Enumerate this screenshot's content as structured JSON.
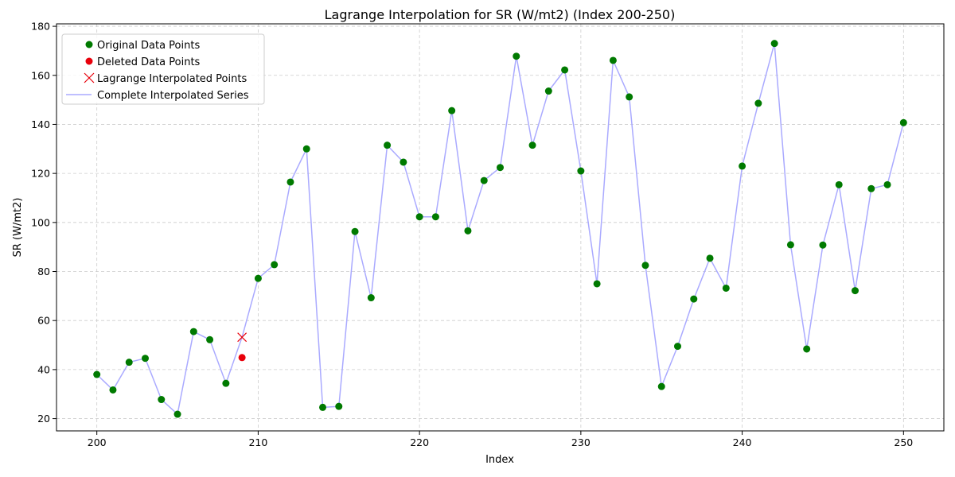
{
  "chart_data": {
    "type": "line",
    "title": "Lagrange Interpolation for SR (W/mt2) (Index 200-250)",
    "xlabel": "Index",
    "ylabel": "SR (W/mt2)",
    "xlim": [
      197.5,
      252.5
    ],
    "ylim": [
      15,
      181
    ],
    "xticks": [
      200,
      210,
      220,
      230,
      240,
      250
    ],
    "yticks": [
      20,
      40,
      60,
      80,
      100,
      120,
      140,
      160,
      180
    ],
    "grid": true,
    "legend_position": "upper-left",
    "series": [
      {
        "name": "Original Data Points",
        "style": "marker-circle",
        "color": "#007a00",
        "x": [
          200,
          201,
          202,
          203,
          204,
          205,
          206,
          207,
          208,
          210,
          211,
          212,
          213,
          214,
          215,
          216,
          217,
          218,
          219,
          220,
          221,
          222,
          223,
          224,
          225,
          226,
          227,
          228,
          229,
          230,
          231,
          232,
          233,
          234,
          235,
          236,
          237,
          238,
          239,
          240,
          241,
          242,
          243,
          244,
          245,
          246,
          247,
          248,
          249,
          250
        ],
        "y": [
          38,
          31.7,
          43,
          44.6,
          27.8,
          21.8,
          55.5,
          52.2,
          34.4,
          77.2,
          82.8,
          116.5,
          130,
          24.6,
          25,
          96.3,
          69.3,
          131.5,
          124.6,
          102.3,
          102.3,
          145.6,
          96.6,
          117.1,
          122.4,
          167.8,
          131.5,
          153.6,
          162.2,
          121,
          75,
          166.1,
          151.2,
          82.5,
          33.1,
          49.5,
          68.8,
          85.4,
          73.2,
          123,
          148.6,
          173,
          90.9,
          48.4,
          90.8,
          115.4,
          72.2,
          113.8,
          115.4,
          140.7
        ]
      },
      {
        "name": "Deleted Data Points",
        "style": "marker-circle",
        "color": "#e8000b",
        "x": [
          209
        ],
        "y": [
          44.9
        ]
      },
      {
        "name": "Lagrange Interpolated Points",
        "style": "marker-x",
        "color": "#e8000b",
        "x": [
          209
        ],
        "y": [
          53.2
        ]
      },
      {
        "name": "Complete Interpolated Series",
        "style": "line",
        "color": "#aaaaff",
        "x": [
          200,
          201,
          202,
          203,
          204,
          205,
          206,
          207,
          208,
          209,
          210,
          211,
          212,
          213,
          214,
          215,
          216,
          217,
          218,
          219,
          220,
          221,
          222,
          223,
          224,
          225,
          226,
          227,
          228,
          229,
          230,
          231,
          232,
          233,
          234,
          235,
          236,
          237,
          238,
          239,
          240,
          241,
          242,
          243,
          244,
          245,
          246,
          247,
          248,
          249,
          250
        ],
        "y": [
          38,
          31.7,
          43,
          44.6,
          27.8,
          21.8,
          55.5,
          52.2,
          34.4,
          53.2,
          77.2,
          82.8,
          116.5,
          130,
          24.6,
          25,
          96.3,
          69.3,
          131.5,
          124.6,
          102.3,
          102.3,
          145.6,
          96.6,
          117.1,
          122.4,
          167.8,
          131.5,
          153.6,
          162.2,
          121,
          75,
          166.1,
          151.2,
          82.5,
          33.1,
          49.5,
          68.8,
          85.4,
          73.2,
          123,
          148.6,
          173,
          90.9,
          48.4,
          90.8,
          115.4,
          72.2,
          113.8,
          115.4,
          140.7
        ]
      }
    ]
  }
}
